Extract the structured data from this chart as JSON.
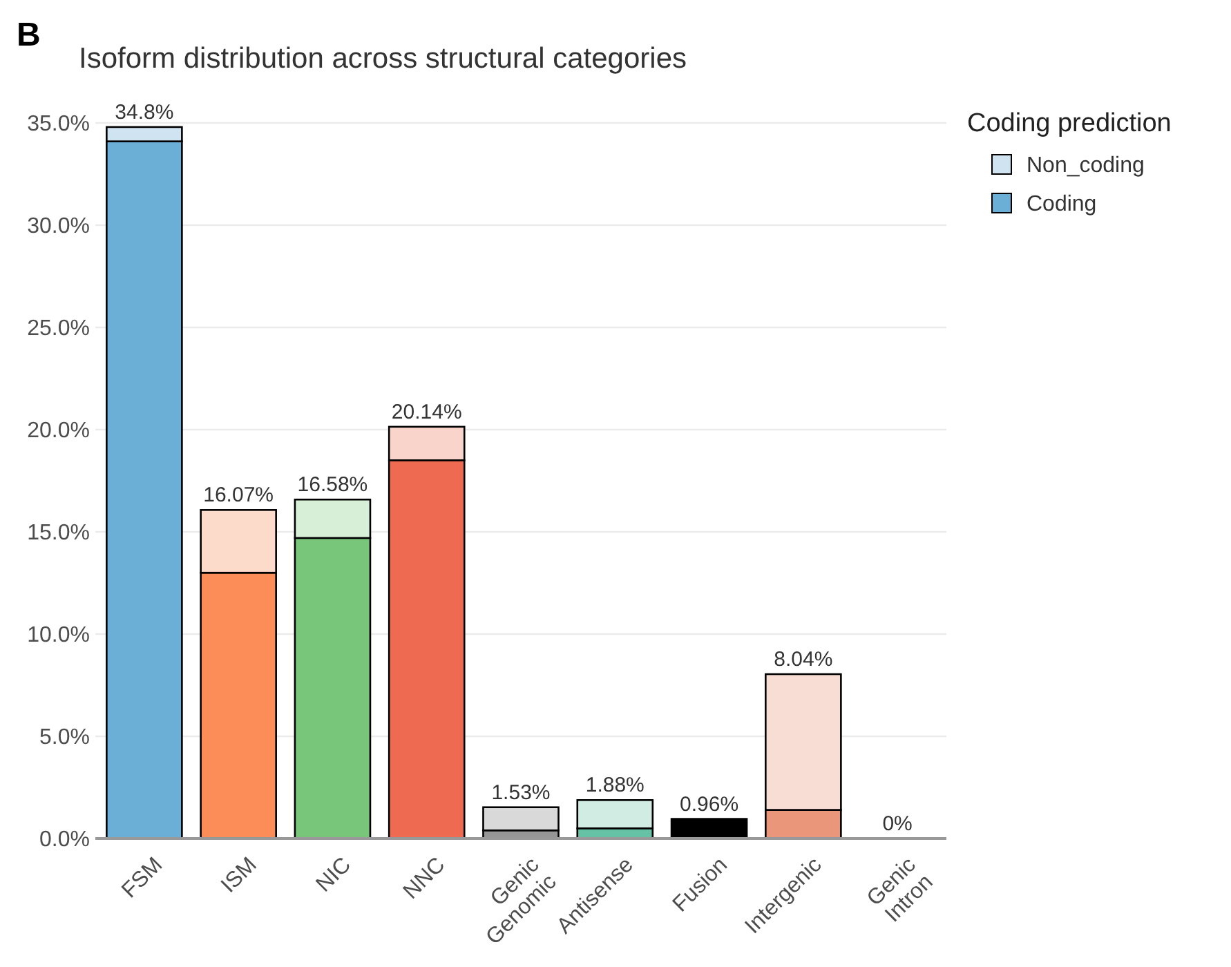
{
  "chart_data": {
    "type": "bar",
    "title": "Isoform distribution across structural categories",
    "annotations": [
      "B"
    ],
    "legend_title": "Coding prediction",
    "categories": [
      "FSM",
      "ISM",
      "NIC",
      "NNC",
      "Genic\nGenomic",
      "Antisense",
      "Fusion",
      "Intergenic",
      "Genic\nIntron"
    ],
    "series": [
      {
        "name": "Coding",
        "color": "#6baed6",
        "colors": [
          "#6baed6",
          "#fc8d59",
          "#78c679",
          "#ee6a50",
          "#969696",
          "#66c2a4",
          "#000000",
          "#e9967a",
          null
        ],
        "values": [
          34.1,
          13.0,
          14.7,
          18.5,
          0.4,
          0.5,
          0.96,
          1.4,
          0
        ]
      },
      {
        "name": "Non_coding",
        "color": "#cfe3f1",
        "colors": [
          "#cfe3f1",
          "#fddbcb",
          "#d7efd7",
          "#f9d4cb",
          "#d9d9d9",
          "#d1ede3",
          null,
          "#f8ddd5",
          null
        ],
        "values": [
          0.7,
          3.07,
          1.88,
          1.64,
          1.13,
          1.38,
          0,
          6.64,
          0
        ]
      }
    ],
    "stacked": true,
    "totals": [
      "34.8%",
      "16.07%",
      "16.58%",
      "20.14%",
      "1.53%",
      "1.88%",
      "0.96%",
      "8.04%",
      "0%"
    ],
    "ylim": [
      0,
      35
    ],
    "yticks": [
      {
        "value": 0,
        "label": "0.0%"
      },
      {
        "value": 5,
        "label": "5.0%"
      },
      {
        "value": 10,
        "label": "10.0%"
      },
      {
        "value": 15,
        "label": "15.0%"
      },
      {
        "value": 20,
        "label": "20.0%"
      },
      {
        "value": 25,
        "label": "25.0%"
      },
      {
        "value": 30,
        "label": "30.0%"
      },
      {
        "value": 35,
        "label": "35.0%"
      }
    ],
    "grid": "y",
    "legend": "top right"
  }
}
